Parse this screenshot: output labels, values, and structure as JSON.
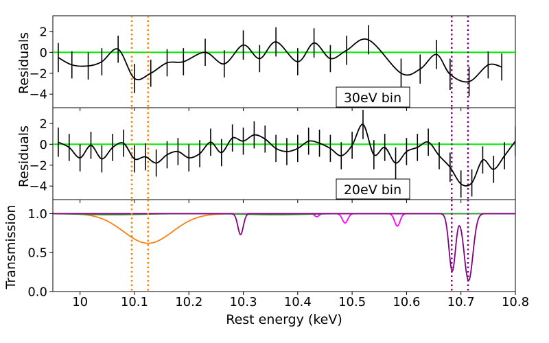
{
  "chart_data": {
    "type": "line",
    "xlabel": "Rest energy (keV)",
    "x_ticks": [
      "10",
      "10.1",
      "10.2",
      "10.3",
      "10.4",
      "10.5",
      "10.6",
      "10.7",
      "10.8"
    ],
    "xlim": [
      9.95,
      10.8
    ],
    "vertical_markers": [
      {
        "x": 10.095,
        "color": "#ff7f0e"
      },
      {
        "x": 10.125,
        "color": "#ff7f0e"
      },
      {
        "x": 10.683,
        "color": "#800080"
      },
      {
        "x": 10.713,
        "color": "#800080"
      }
    ],
    "panels": [
      {
        "name": "residuals-30ev",
        "ylabel": "Residuals",
        "ylim": [
          -5.3,
          3.5
        ],
        "y_ticks": [
          "2",
          "0",
          "−2",
          "−4"
        ],
        "box_label": "30eV bin",
        "zero_line_color": "#00ee00",
        "points": [
          {
            "x": 9.96,
            "y": -0.5,
            "err": 1.4
          },
          {
            "x": 9.985,
            "y": -1.2,
            "err": 1.3
          },
          {
            "x": 10.015,
            "y": -1.3,
            "err": 1.3
          },
          {
            "x": 10.04,
            "y": -0.9,
            "err": 1.3
          },
          {
            "x": 10.07,
            "y": 0.3,
            "err": 1.3
          },
          {
            "x": 10.1,
            "y": -2.5,
            "err": 1.4
          },
          {
            "x": 10.13,
            "y": -2.0,
            "err": 1.3
          },
          {
            "x": 10.16,
            "y": -1.0,
            "err": 1.3
          },
          {
            "x": 10.19,
            "y": -0.9,
            "err": 1.3
          },
          {
            "x": 10.23,
            "y": 0.0,
            "err": 1.3
          },
          {
            "x": 10.265,
            "y": -1.1,
            "err": 1.3
          },
          {
            "x": 10.3,
            "y": 0.7,
            "err": 1.4
          },
          {
            "x": 10.33,
            "y": -0.6,
            "err": 1.3
          },
          {
            "x": 10.36,
            "y": 1.0,
            "err": 1.4
          },
          {
            "x": 10.4,
            "y": -0.9,
            "err": 1.3
          },
          {
            "x": 10.43,
            "y": 0.9,
            "err": 1.4
          },
          {
            "x": 10.46,
            "y": -0.6,
            "err": 1.3
          },
          {
            "x": 10.49,
            "y": 0.2,
            "err": 1.4
          },
          {
            "x": 10.53,
            "y": 1.2,
            "err": 1.4
          },
          {
            "x": 10.59,
            "y": -2.0,
            "err": 1.4
          },
          {
            "x": 10.625,
            "y": -1.6,
            "err": 1.4
          },
          {
            "x": 10.655,
            "y": -0.2,
            "err": 1.4
          },
          {
            "x": 10.68,
            "y": -2.1,
            "err": 1.5
          },
          {
            "x": 10.715,
            "y": -2.8,
            "err": 1.4
          },
          {
            "x": 10.75,
            "y": -1.2,
            "err": 1.3
          },
          {
            "x": 10.775,
            "y": -1.4,
            "err": 1.3
          }
        ]
      },
      {
        "name": "residuals-20ev",
        "ylabel": "Residuals",
        "ylim": [
          -5.3,
          3.5
        ],
        "y_ticks": [
          "2",
          "0",
          "−2",
          "−4"
        ],
        "box_label": "20eV bin",
        "zero_line_color": "#00ee00",
        "points": [
          {
            "x": 9.96,
            "y": 0.2,
            "err": 1.4
          },
          {
            "x": 9.98,
            "y": -0.3,
            "err": 1.3
          },
          {
            "x": 10.0,
            "y": -1.3,
            "err": 1.3
          },
          {
            "x": 10.02,
            "y": -0.1,
            "err": 1.3
          },
          {
            "x": 10.04,
            "y": -1.4,
            "err": 1.3
          },
          {
            "x": 10.06,
            "y": -0.3,
            "err": 1.3
          },
          {
            "x": 10.08,
            "y": 0.1,
            "err": 1.3
          },
          {
            "x": 10.1,
            "y": -1.4,
            "err": 1.3
          },
          {
            "x": 10.12,
            "y": -1.2,
            "err": 1.3
          },
          {
            "x": 10.14,
            "y": -1.8,
            "err": 1.3
          },
          {
            "x": 10.16,
            "y": -1.0,
            "err": 1.3
          },
          {
            "x": 10.18,
            "y": -0.7,
            "err": 1.3
          },
          {
            "x": 10.2,
            "y": -1.3,
            "err": 1.3
          },
          {
            "x": 10.22,
            "y": -0.9,
            "err": 1.3
          },
          {
            "x": 10.24,
            "y": 0.2,
            "err": 1.3
          },
          {
            "x": 10.26,
            "y": -0.8,
            "err": 1.3
          },
          {
            "x": 10.28,
            "y": 0.6,
            "err": 1.3
          },
          {
            "x": 10.3,
            "y": 0.3,
            "err": 1.3
          },
          {
            "x": 10.32,
            "y": 0.9,
            "err": 1.3
          },
          {
            "x": 10.34,
            "y": 0.5,
            "err": 1.3
          },
          {
            "x": 10.36,
            "y": -0.4,
            "err": 1.3
          },
          {
            "x": 10.38,
            "y": -0.7,
            "err": 1.3
          },
          {
            "x": 10.4,
            "y": -0.4,
            "err": 1.3
          },
          {
            "x": 10.42,
            "y": 0.3,
            "err": 1.3
          },
          {
            "x": 10.44,
            "y": 0.1,
            "err": 1.3
          },
          {
            "x": 10.46,
            "y": -0.4,
            "err": 1.3
          },
          {
            "x": 10.48,
            "y": -1.1,
            "err": 1.3
          },
          {
            "x": 10.5,
            "y": -0.1,
            "err": 1.3
          },
          {
            "x": 10.52,
            "y": 1.9,
            "err": 1.4
          },
          {
            "x": 10.54,
            "y": -1.0,
            "err": 1.4
          },
          {
            "x": 10.56,
            "y": -0.3,
            "err": 1.3
          },
          {
            "x": 10.58,
            "y": -1.8,
            "err": 1.5
          },
          {
            "x": 10.6,
            "y": -0.7,
            "err": 1.3
          },
          {
            "x": 10.62,
            "y": -0.3,
            "err": 1.3
          },
          {
            "x": 10.64,
            "y": 0.2,
            "err": 1.3
          },
          {
            "x": 10.66,
            "y": -1.1,
            "err": 1.3
          },
          {
            "x": 10.68,
            "y": -2.2,
            "err": 1.4
          },
          {
            "x": 10.7,
            "y": -3.8,
            "err": 1.3
          },
          {
            "x": 10.72,
            "y": -3.7,
            "err": 1.3
          },
          {
            "x": 10.74,
            "y": -1.5,
            "err": 1.3
          },
          {
            "x": 10.76,
            "y": -2.4,
            "err": 1.3
          },
          {
            "x": 10.78,
            "y": -1.1,
            "err": 1.3
          },
          {
            "x": 10.8,
            "y": 0.3,
            "err": 1.4
          }
        ]
      },
      {
        "name": "transmission",
        "ylabel": "Transmission",
        "ylim": [
          0,
          1.18
        ],
        "y_ticks": [
          "1.0",
          "0.5",
          "0.0"
        ],
        "series": [
          {
            "name": "orange",
            "color": "#ff7f0e",
            "features": [
              {
                "center": 10.125,
                "depth": 0.38,
                "width": 0.045
              }
            ]
          },
          {
            "name": "magenta",
            "color": "#ff00ff",
            "features": [
              {
                "center": 10.435,
                "depth": 0.04,
                "width": 0.004
              },
              {
                "center": 10.487,
                "depth": 0.12,
                "width": 0.005
              },
              {
                "center": 10.583,
                "depth": 0.16,
                "width": 0.005
              }
            ]
          },
          {
            "name": "green",
            "color": "#2ca02c",
            "features": [
              {
                "center": 10.06,
                "depth": 0.015,
                "width": 0.05
              },
              {
                "center": 10.36,
                "depth": 0.015,
                "width": 0.05
              }
            ]
          },
          {
            "name": "purple",
            "color": "#800080",
            "features": [
              {
                "center": 10.295,
                "depth": 0.27,
                "width": 0.005
              },
              {
                "center": 10.684,
                "depth": 0.74,
                "width": 0.006
              },
              {
                "center": 10.714,
                "depth": 0.86,
                "width": 0.008
              }
            ]
          }
        ]
      }
    ]
  }
}
